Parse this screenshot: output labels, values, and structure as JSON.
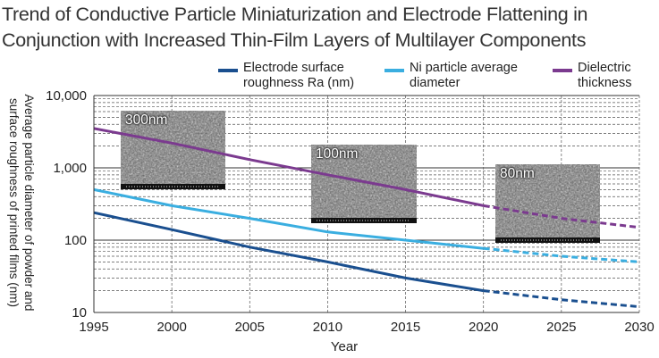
{
  "title_lines": [
    "Trend of Conductive Particle Miniaturization and Electrode Flattening in",
    "Conjunction with Increased Thin-Film Layers of Multilayer Components"
  ],
  "colors": {
    "electrode": "#1a4f8f",
    "ni": "#3aaee0",
    "dielectric": "#7b3a8f"
  },
  "chart_data": {
    "type": "line",
    "x": [
      1995,
      2000,
      2005,
      2010,
      2015,
      2020,
      2025,
      2030
    ],
    "xlim": [
      1995,
      2030
    ],
    "ylim": [
      10,
      10000
    ],
    "y_scale": "log",
    "xlabel": "Year",
    "ylabel": "Average particle diameter of powder and surface roughness of printed films (nm)",
    "x_ticks": [
      "1995",
      "2000",
      "2005",
      "2010",
      "2015",
      "2020",
      "2025",
      "2030"
    ],
    "y_ticks": [
      "10,000",
      "1,000",
      "100",
      "10"
    ],
    "legend_placement": "top-right",
    "grid": true,
    "forecast_from": 2020,
    "series": [
      {
        "name": "Electrode surface\nroughness Ra (nm)",
        "key": "electrode",
        "values": [
          240,
          140,
          80,
          50,
          30,
          20,
          15,
          12
        ]
      },
      {
        "name": "Ni particle average\ndiameter",
        "key": "ni",
        "values": [
          500,
          300,
          200,
          130,
          100,
          77,
          60,
          50
        ]
      },
      {
        "name": "Dielectric\nthickness",
        "key": "dielectric",
        "values": [
          3500,
          2200,
          1300,
          800,
          500,
          300,
          200,
          150
        ]
      }
    ],
    "annotations": [
      {
        "label": "300nm",
        "year": 2002.5
      },
      {
        "label": "100nm",
        "year": 2013.0
      },
      {
        "label": "80nm",
        "year": 2023.5
      }
    ]
  }
}
